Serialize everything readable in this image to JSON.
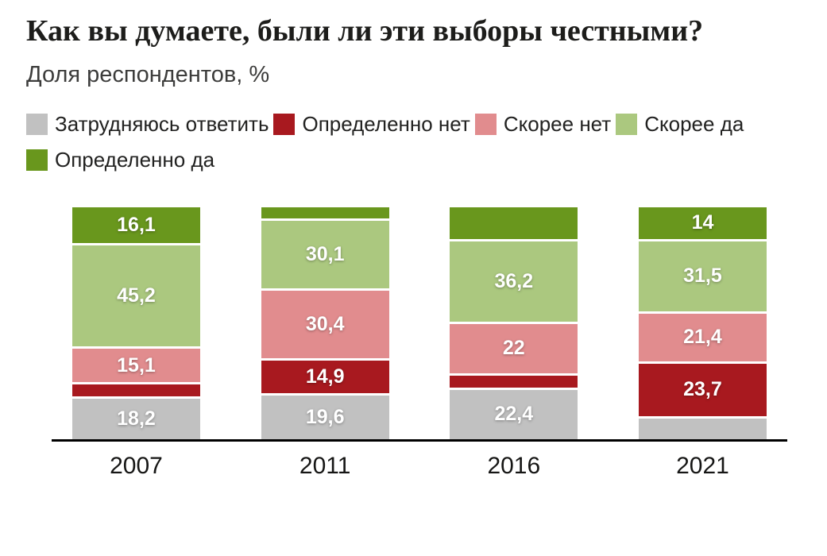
{
  "title": "Как вы думаете, были ли эти выборы честными?",
  "subtitle": "Доля респондентов, %",
  "colors": {
    "undecided": "#c1c1c1",
    "definitely_no": "#a8191f",
    "rather_no": "#e18c8e",
    "rather_yes": "#abc87f",
    "definitely_yes": "#69971d"
  },
  "legend": [
    {
      "label": "Затрудняюсь ответить",
      "color": "#c1c1c1"
    },
    {
      "label": "Определенно нет",
      "color": "#a8191f"
    },
    {
      "label": "Скорее нет",
      "color": "#e18c8e"
    },
    {
      "label": "Скорее да",
      "color": "#abc87f"
    },
    {
      "label": "Определенно да",
      "color": "#69971d"
    }
  ],
  "chart_data": {
    "type": "bar",
    "stacked": true,
    "title": "Как вы думаете, были ли эти выборы честными?",
    "ylabel": "Доля респондентов, %",
    "ylim": [
      0,
      100
    ],
    "legend_position": "top",
    "grid": false,
    "categories": [
      "2007",
      "2011",
      "2016",
      "2021"
    ],
    "series": [
      {
        "name": "Затрудняюсь ответить",
        "color": "#c1c1c1",
        "values": [
          18.2,
          19.6,
          22.4,
          9.4
        ],
        "labels": [
          "18,2",
          "19,6",
          "22,4",
          ""
        ]
      },
      {
        "name": "Определенно нет",
        "color": "#a8191f",
        "values": [
          5.4,
          14.9,
          5.4,
          23.7
        ],
        "labels": [
          "",
          "14,9",
          "",
          "23,7"
        ]
      },
      {
        "name": "Скорее нет",
        "color": "#e18c8e",
        "values": [
          15.1,
          30.4,
          22,
          21.4
        ],
        "labels": [
          "15,1",
          "30,4",
          "22",
          "21,4"
        ]
      },
      {
        "name": "Скорее да",
        "color": "#abc87f",
        "values": [
          45.2,
          30.1,
          36.2,
          31.5
        ],
        "labels": [
          "45,2",
          "30,1",
          "36,2",
          "31,5"
        ]
      },
      {
        "name": "Определенно да",
        "color": "#69971d",
        "values": [
          16.1,
          5.0,
          14.0,
          14
        ],
        "labels": [
          "16,1",
          "",
          "",
          "14"
        ]
      }
    ]
  }
}
